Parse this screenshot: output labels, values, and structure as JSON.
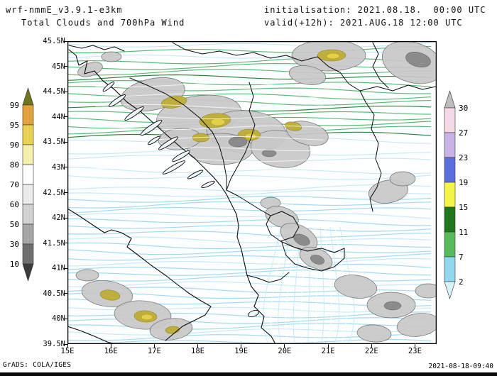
{
  "header": {
    "model": "wrf-nmmE_v3.9.1-e3km",
    "title": "Total Clouds and 700hPa Wind",
    "init": "initialisation: 2021.08.18.  00:00 UTC",
    "valid": "valid(+12h): 2021.AUG.18 12:00 UTC"
  },
  "axes": {
    "y": [
      "45.5N",
      "45N",
      "44.5N",
      "44N",
      "43.5N",
      "43N",
      "42.5N",
      "42N",
      "41.5N",
      "41N",
      "40.5N",
      "40N",
      "39.5N"
    ],
    "x": [
      "15E",
      "16E",
      "17E",
      "18E",
      "19E",
      "20E",
      "21E",
      "22E",
      "23E"
    ]
  },
  "left_colorbar": {
    "labels": [
      "99",
      "95",
      "90",
      "80",
      "70",
      "60",
      "50",
      "30",
      "10"
    ],
    "colors": [
      "#6f7420",
      "#e2a23e",
      "#e9d252",
      "#f6f0ae",
      "#ffffff",
      "#ebebeb",
      "#d2d2d2",
      "#a6a6a6",
      "#6f6f6f",
      "#3b3b3b"
    ]
  },
  "right_colorbar": {
    "labels": [
      "30",
      "27",
      "23",
      "19",
      "15",
      "11",
      "7",
      "2"
    ],
    "colors": [
      "#bdbdbd",
      "#f4d9e9",
      "#c9b2e5",
      "#5a6fde",
      "#f4f44a",
      "#1d781d",
      "#57bb5c",
      "#8fd8f0",
      "#d9f3fa"
    ]
  },
  "chart_data": {
    "type": "heatmap",
    "title": "Total Clouds and 700hPa Wind",
    "x_range_deg_east": [
      15,
      23.5
    ],
    "y_range_deg_north": [
      39.5,
      45.5
    ],
    "cloud_levels_percent": [
      10,
      30,
      50,
      60,
      70,
      80,
      90,
      95,
      99
    ],
    "wind_levels": [
      2,
      7,
      11,
      15,
      19,
      23,
      27,
      30
    ],
    "legend_position": "left: cloud cover, right: wind speed"
  },
  "map": {
    "sea_color": "#fcfeff",
    "stream_colors": {
      "cyan": "#9bd7ee",
      "pale": "#c6e8f3",
      "green": "#4fb46a",
      "dark_green": "#1e7a2e",
      "white": "#ffffff"
    }
  },
  "footer": {
    "credit": "GrADS: COLA/IGES",
    "timestamp": "2021-08-18-09:40"
  }
}
